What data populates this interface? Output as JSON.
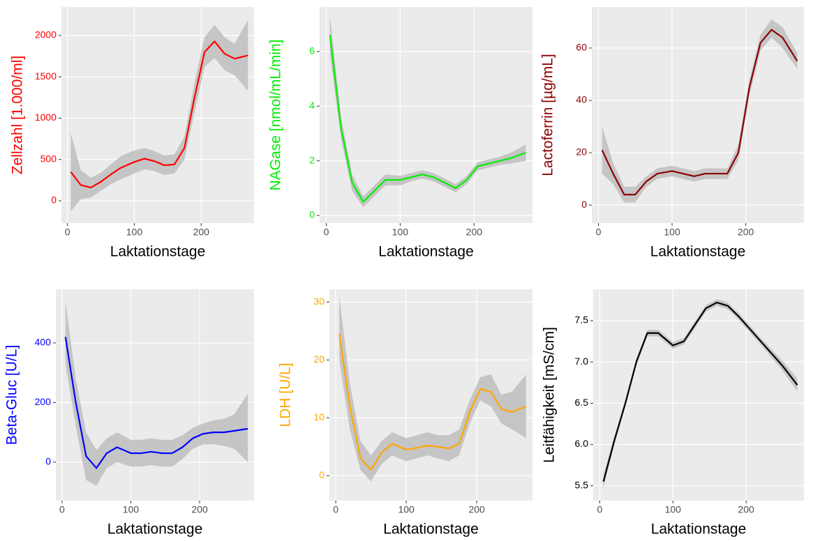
{
  "chart_data": [
    {
      "type": "line",
      "xlabel": "Laktationstage",
      "ylabel": "Zellzahl [1.000/ml]",
      "grid": true,
      "x": [
        5,
        20,
        35,
        50,
        65,
        80,
        100,
        115,
        130,
        145,
        160,
        175,
        190,
        205,
        220,
        235,
        250,
        270
      ],
      "xlim": [
        -9,
        279
      ],
      "xticks": [
        0,
        100,
        200
      ],
      "ylim": [
        -270,
        2346
      ],
      "yticks": [
        0,
        500,
        1000,
        1500,
        2000
      ],
      "series": [
        {
          "color": "#ff0000",
          "values": [
            350,
            190,
            160,
            230,
            320,
            400,
            470,
            510,
            480,
            430,
            440,
            640,
            1250,
            1800,
            1930,
            1780,
            1720,
            1760
          ]
        }
      ],
      "band": {
        "color": "#bebebe",
        "lower": [
          -130,
          20,
          40,
          120,
          200,
          260,
          330,
          380,
          360,
          310,
          330,
          500,
          1070,
          1620,
          1730,
          1580,
          1520,
          1330
        ],
        "upper": [
          820,
          370,
          280,
          340,
          440,
          540,
          610,
          640,
          600,
          550,
          560,
          780,
          1430,
          1980,
          2130,
          1980,
          1900,
          2190
        ]
      }
    },
    {
      "type": "line",
      "xlabel": "Laktationstage",
      "ylabel": "NAGase [nmol/mL/min]",
      "grid": true,
      "x": [
        5,
        20,
        35,
        50,
        65,
        80,
        100,
        115,
        130,
        145,
        160,
        175,
        190,
        205,
        220,
        235,
        250,
        270
      ],
      "xlim": [
        -9,
        279
      ],
      "xticks": [
        0,
        100,
        200
      ],
      "ylim": [
        -0.28,
        7.63
      ],
      "yticks": [
        0,
        2,
        4,
        6
      ],
      "series": [
        {
          "color": "#00ee00",
          "values": [
            6.6,
            3.2,
            1.2,
            0.5,
            0.9,
            1.3,
            1.3,
            1.4,
            1.5,
            1.4,
            1.2,
            1.0,
            1.3,
            1.8,
            1.9,
            2.0,
            2.1,
            2.3
          ]
        }
      ],
      "band": {
        "color": "#bebebe",
        "lower": [
          5.9,
          2.8,
          0.9,
          0.3,
          0.7,
          1.1,
          1.1,
          1.25,
          1.35,
          1.25,
          1.05,
          0.85,
          1.15,
          1.65,
          1.75,
          1.85,
          1.9,
          2.0
        ],
        "upper": [
          7.3,
          3.6,
          1.5,
          0.7,
          1.1,
          1.5,
          1.45,
          1.55,
          1.65,
          1.55,
          1.35,
          1.15,
          1.45,
          1.95,
          2.05,
          2.15,
          2.3,
          2.6
        ]
      }
    },
    {
      "type": "line",
      "xlabel": "Laktationstage",
      "ylabel": "Lactoferrin [µg/mL]",
      "grid": true,
      "x": [
        5,
        20,
        35,
        50,
        65,
        80,
        100,
        115,
        130,
        145,
        160,
        175,
        190,
        205,
        220,
        235,
        250,
        270
      ],
      "xlim": [
        -9,
        279
      ],
      "xticks": [
        0,
        100,
        200
      ],
      "ylim": [
        -6.9,
        75.7
      ],
      "yticks": [
        0,
        20,
        40,
        60
      ],
      "series": [
        {
          "color": "#8b0000",
          "values": [
            21,
            12,
            4,
            4,
            9,
            12,
            13,
            12,
            11,
            12,
            12,
            12,
            20,
            45,
            62,
            67,
            64,
            55
          ]
        }
      ],
      "band": {
        "color": "#bebebe",
        "lower": [
          12,
          8,
          1,
          1,
          7,
          10,
          11,
          10,
          9,
          10,
          10,
          10,
          17,
          42,
          59,
          64,
          60,
          52
        ],
        "upper": [
          30,
          16,
          7,
          7,
          11,
          14,
          15,
          14,
          13,
          14,
          14,
          14,
          23,
          48,
          65,
          71,
          68,
          58
        ]
      }
    },
    {
      "type": "line",
      "xlabel": "Laktationstage",
      "ylabel": "Beta-Gluc [U/L]",
      "grid": true,
      "x": [
        5,
        20,
        35,
        50,
        65,
        80,
        100,
        115,
        130,
        145,
        160,
        175,
        190,
        205,
        220,
        235,
        250,
        270
      ],
      "xlim": [
        -9,
        279
      ],
      "xticks": [
        0,
        100,
        200
      ],
      "ylim": [
        -129,
        580
      ],
      "yticks": [
        0,
        200,
        400
      ],
      "series": [
        {
          "color": "#0000ff",
          "values": [
            420,
            200,
            20,
            -20,
            30,
            50,
            30,
            30,
            35,
            30,
            30,
            50,
            80,
            95,
            100,
            100,
            105,
            112
          ]
        }
      ],
      "band": {
        "color": "#bebebe",
        "lower": [
          330,
          120,
          -60,
          -80,
          -20,
          0,
          -15,
          -15,
          -10,
          -15,
          -15,
          10,
          45,
          60,
          60,
          55,
          45,
          0
        ],
        "upper": [
          540,
          280,
          100,
          40,
          80,
          100,
          75,
          75,
          80,
          75,
          75,
          90,
          115,
          130,
          140,
          145,
          160,
          230
        ]
      }
    },
    {
      "type": "line",
      "xlabel": "Laktationstage",
      "ylabel": "LDH [U/L]",
      "grid": true,
      "x": [
        5,
        20,
        35,
        50,
        65,
        80,
        100,
        115,
        130,
        145,
        160,
        175,
        190,
        205,
        220,
        235,
        250,
        270
      ],
      "xlim": [
        -9,
        279
      ],
      "xticks": [
        0,
        100,
        200
      ],
      "ylim": [
        -4.3,
        32.2
      ],
      "yticks": [
        0,
        10,
        20,
        30
      ],
      "series": [
        {
          "color": "#ffa500",
          "values": [
            24.5,
            12,
            3,
            1,
            4,
            5.5,
            4.5,
            4.8,
            5.2,
            5,
            4.7,
            5.5,
            11,
            15,
            14.5,
            11.5,
            11,
            12
          ]
        }
      ],
      "band": {
        "color": "#bebebe",
        "lower": [
          20,
          8,
          1,
          -1,
          2,
          3.5,
          2.5,
          3,
          3.5,
          3,
          2.5,
          3.5,
          9,
          13,
          12,
          9,
          8,
          6.5
        ],
        "upper": [
          31,
          16,
          6,
          3.5,
          6,
          7.5,
          6.5,
          7,
          7.5,
          7,
          7,
          8,
          13,
          17,
          17.5,
          14,
          14.5,
          17.5
        ]
      }
    },
    {
      "type": "line",
      "xlabel": "Laktationstage",
      "ylabel": "Leitfähigkeit [mS/cm]",
      "grid": true,
      "x": [
        5,
        20,
        35,
        50,
        65,
        80,
        100,
        115,
        130,
        145,
        160,
        175,
        190,
        205,
        220,
        235,
        250,
        270
      ],
      "xlim": [
        -9,
        279
      ],
      "xticks": [
        0,
        100,
        200
      ],
      "ylim": [
        5.32,
        7.88
      ],
      "yticks": [
        5.5,
        {
          "value": 6,
          "label": "6.0"
        },
        6.5,
        {
          "value": 7,
          "label": "7.0"
        },
        7.5
      ],
      "series": [
        {
          "color": "#000000",
          "values": [
            5.55,
            6.05,
            6.5,
            7.0,
            7.35,
            7.35,
            7.2,
            7.25,
            7.45,
            7.65,
            7.72,
            7.68,
            7.55,
            7.4,
            7.25,
            7.1,
            6.95,
            6.72
          ]
        }
      ],
      "band": {
        "color": "#bebebe",
        "lower": [
          5.47,
          6.0,
          6.46,
          6.96,
          7.31,
          7.31,
          7.16,
          7.21,
          7.41,
          7.61,
          7.68,
          7.64,
          7.51,
          7.36,
          7.21,
          7.05,
          6.89,
          6.64
        ],
        "upper": [
          5.63,
          6.1,
          6.54,
          7.04,
          7.39,
          7.39,
          7.24,
          7.29,
          7.49,
          7.69,
          7.76,
          7.72,
          7.59,
          7.44,
          7.29,
          7.15,
          7.01,
          6.8
        ]
      }
    }
  ]
}
